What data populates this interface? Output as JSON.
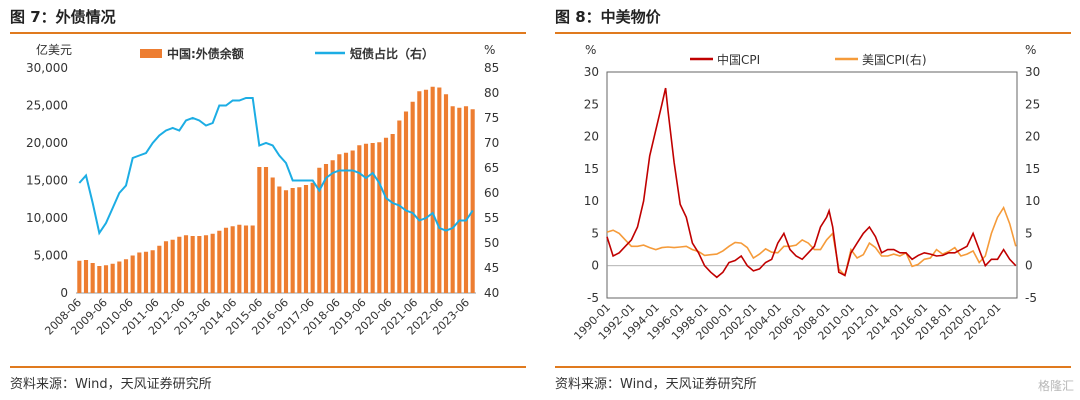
{
  "left": {
    "title": "图 7：外债情况",
    "source": "资料来源：Wind，天风证券研究所"
  },
  "right": {
    "title": "图 8：中美物价",
    "source": "资料来源：Wind，天风证券研究所"
  },
  "watermark": "格隆汇",
  "colors": {
    "accent": "#E07A1E",
    "bar": "#ED7D31",
    "line_blue": "#1CADE4",
    "line_red": "#C00000",
    "line_orange": "#F59B3A"
  },
  "chart_data": [
    {
      "type": "bar",
      "y_unit_left": "亿美元",
      "y_unit_right": "%",
      "ylim_left": [
        0,
        30000
      ],
      "yticks_left": [
        "0",
        "5,000",
        "10,000",
        "15,000",
        "20,000",
        "25,000",
        "30,000"
      ],
      "ylim_right": [
        40,
        85
      ],
      "yticks_right": [
        "40",
        "45",
        "50",
        "55",
        "60",
        "65",
        "70",
        "75",
        "80",
        "85"
      ],
      "x_ticks": [
        "2008-06",
        "2009-06",
        "2010-06",
        "2011-06",
        "2012-06",
        "2013-06",
        "2014-06",
        "2015-06",
        "2016-06",
        "2017-06",
        "2018-06",
        "2019-06",
        "2020-06",
        "2021-06",
        "2022-06",
        "2023-06"
      ],
      "legend": "top",
      "series": [
        {
          "name": "中国:外债余额",
          "kind": "bar",
          "axis": "left",
          "values": [
            4300,
            4400,
            4000,
            3600,
            3700,
            3900,
            4200,
            4500,
            5000,
            5400,
            5500,
            5700,
            6300,
            6900,
            7100,
            7500,
            7700,
            7600,
            7600,
            7700,
            7900,
            8300,
            8700,
            8900,
            9100,
            9000,
            9000,
            16800,
            16800,
            15400,
            14200,
            13700,
            14000,
            14100,
            14400,
            14700,
            16700,
            17200,
            17700,
            18500,
            18700,
            19000,
            19700,
            19900,
            20000,
            20100,
            20700,
            21200,
            23000,
            24200,
            25500,
            26900,
            27100,
            27500,
            27400,
            26500,
            24900,
            24700,
            24900,
            24500
          ]
        },
        {
          "name": "短债占比（右）",
          "kind": "line",
          "axis": "right",
          "values": [
            62,
            63.5,
            58,
            52,
            54,
            57,
            60,
            61.5,
            67,
            67.5,
            68,
            70,
            71.5,
            72.5,
            73,
            72.5,
            74.5,
            75,
            74.5,
            73.5,
            74,
            77.5,
            77.5,
            78.5,
            78.5,
            79,
            79,
            69.5,
            70,
            69.5,
            67.5,
            66,
            62.5,
            62.5,
            62.5,
            62.5,
            60.5,
            63,
            64,
            64.5,
            64.5,
            64.5,
            64,
            63,
            64,
            62,
            59,
            58,
            57.5,
            56.5,
            56,
            54.5,
            55,
            56,
            53,
            52.5,
            53,
            54.5,
            54.5,
            56.5
          ]
        }
      ]
    },
    {
      "type": "line",
      "y_unit_left": "%",
      "y_unit_right": "%",
      "ylim": [
        -5,
        30
      ],
      "yticks_left": [
        "-5",
        "0",
        "5",
        "10",
        "15",
        "20",
        "25",
        "30"
      ],
      "yticks_right": [
        "-5",
        "0",
        "5",
        "10",
        "15",
        "20",
        "25",
        "30"
      ],
      "x_ticks": [
        "1990-01",
        "1992-01",
        "1994-01",
        "1996-01",
        "1998-01",
        "2000-01",
        "2002-01",
        "2004-01",
        "2006-01",
        "2008-01",
        "2010-01",
        "2012-01",
        "2014-01",
        "2016-01",
        "2018-01",
        "2020-01",
        "2022-01"
      ],
      "legend": "top",
      "series": [
        {
          "name": "中国CPI",
          "axis": "left",
          "x": [
            1990.0,
            1990.5,
            1991.0,
            1991.5,
            1992.0,
            1992.5,
            1993.0,
            1993.5,
            1994.0,
            1994.5,
            1994.8,
            1995.0,
            1995.5,
            1996.0,
            1996.5,
            1997.0,
            1997.5,
            1998.0,
            1998.5,
            1999.0,
            1999.5,
            2000.0,
            2000.5,
            2001.0,
            2001.5,
            2002.0,
            2002.5,
            2003.0,
            2003.5,
            2004.0,
            2004.5,
            2005.0,
            2005.5,
            2006.0,
            2006.5,
            2007.0,
            2007.5,
            2008.0,
            2008.2,
            2008.5,
            2009.0,
            2009.5,
            2010.0,
            2010.5,
            2011.0,
            2011.5,
            2012.0,
            2012.5,
            2013.0,
            2013.5,
            2014.0,
            2014.5,
            2015.0,
            2015.5,
            2016.0,
            2016.5,
            2017.0,
            2017.5,
            2018.0,
            2018.5,
            2019.0,
            2019.5,
            2020.0,
            2020.5,
            2021.0,
            2021.5,
            2022.0,
            2022.5,
            2023.0,
            2023.5
          ],
          "y": [
            4.5,
            1.5,
            2.0,
            3.0,
            4.0,
            6.0,
            10.0,
            17.0,
            21.0,
            25.0,
            27.5,
            24.0,
            16.0,
            9.5,
            7.5,
            3.5,
            2.0,
            0.0,
            -1.0,
            -1.8,
            -1.0,
            0.5,
            0.8,
            1.5,
            0.0,
            -0.8,
            -0.5,
            0.5,
            1.0,
            3.5,
            5.0,
            2.5,
            1.5,
            1.0,
            2.0,
            3.0,
            6.0,
            7.5,
            8.5,
            6.0,
            -1.0,
            -1.5,
            2.0,
            3.5,
            5.0,
            6.0,
            4.5,
            2.0,
            2.5,
            2.5,
            2.0,
            2.0,
            1.0,
            1.6,
            2.0,
            1.8,
            1.5,
            1.6,
            2.0,
            2.0,
            2.5,
            3.0,
            5.0,
            2.5,
            0.0,
            1.0,
            1.0,
            2.5,
            1.0,
            0.0
          ]
        },
        {
          "name": "美国CPI(右)",
          "axis": "right",
          "x": [
            1990.0,
            1990.5,
            1991.0,
            1991.5,
            1992.0,
            1992.5,
            1993.0,
            1993.5,
            1994.0,
            1994.5,
            1995.0,
            1995.5,
            1996.0,
            1996.5,
            1997.0,
            1997.5,
            1998.0,
            1998.5,
            1999.0,
            1999.5,
            2000.0,
            2000.5,
            2001.0,
            2001.5,
            2002.0,
            2002.5,
            2003.0,
            2003.5,
            2004.0,
            2004.5,
            2005.0,
            2005.5,
            2006.0,
            2006.5,
            2007.0,
            2007.5,
            2008.0,
            2008.5,
            2009.0,
            2009.5,
            2010.0,
            2010.5,
            2011.0,
            2011.5,
            2012.0,
            2012.5,
            2013.0,
            2013.5,
            2014.0,
            2014.5,
            2015.0,
            2015.5,
            2016.0,
            2016.5,
            2017.0,
            2017.5,
            2018.0,
            2018.5,
            2019.0,
            2019.5,
            2020.0,
            2020.5,
            2021.0,
            2021.5,
            2022.0,
            2022.5,
            2023.0,
            2023.5
          ],
          "y": [
            5.2,
            5.5,
            5.0,
            4.0,
            3.0,
            3.0,
            3.2,
            2.8,
            2.5,
            2.8,
            2.9,
            2.8,
            2.9,
            3.0,
            2.5,
            2.2,
            1.6,
            1.7,
            1.8,
            2.3,
            3.0,
            3.6,
            3.5,
            2.8,
            1.2,
            1.8,
            2.6,
            2.1,
            2.0,
            3.0,
            3.0,
            3.2,
            4.0,
            3.5,
            2.5,
            2.5,
            4.0,
            5.0,
            -0.5,
            -1.5,
            2.5,
            1.2,
            1.7,
            3.5,
            2.8,
            1.5,
            1.5,
            1.8,
            1.5,
            2.0,
            -0.1,
            0.2,
            1.0,
            1.2,
            2.5,
            1.8,
            2.2,
            2.8,
            1.5,
            1.8,
            2.3,
            0.5,
            1.5,
            5.0,
            7.5,
            9.0,
            6.5,
            3.0
          ]
        }
      ]
    }
  ]
}
